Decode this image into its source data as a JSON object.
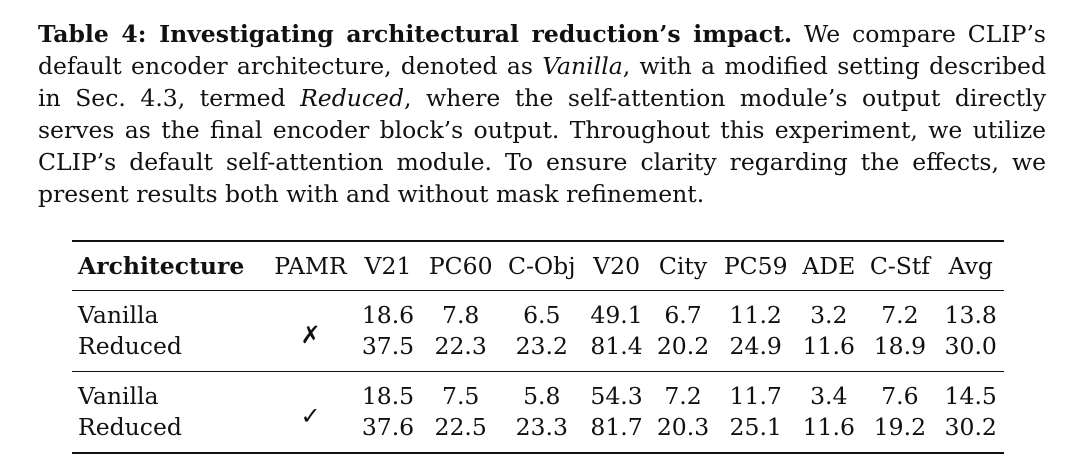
{
  "caption": {
    "label": "Table 4: Investigating architectural reduction’s impact.",
    "text_1": " We compare CLIP’s default encoder architecture, denoted as ",
    "vanilla": "Vanilla",
    "text_2": ", with a modified setting described in Sec. 4.3, termed ",
    "reduced": "Reduced",
    "text_3": ", where the self-attention module’s output directly serves as the final encoder block’s output. Throughout this experiment, we utilize CLIP’s default self-attention module. To ensure clarity regarding the effects, we present results both with and without mask refinement."
  },
  "table": {
    "headers": [
      "Architecture",
      "PAMR",
      "V21",
      "PC60",
      "C-Obj",
      "V20",
      "City",
      "PC59",
      "ADE",
      "C-Stf",
      "Avg"
    ],
    "groups": [
      {
        "pamr": "✗",
        "rows": [
          {
            "name": "Vanilla",
            "values": [
              "18.6",
              "7.8",
              "6.5",
              "49.1",
              "6.7",
              "11.2",
              "3.2",
              "7.2",
              "13.8"
            ]
          },
          {
            "name": "Reduced",
            "values": [
              "37.5",
              "22.3",
              "23.2",
              "81.4",
              "20.2",
              "24.9",
              "11.6",
              "18.9",
              "30.0"
            ]
          }
        ]
      },
      {
        "pamr": "✓",
        "rows": [
          {
            "name": "Vanilla",
            "values": [
              "18.5",
              "7.5",
              "5.8",
              "54.3",
              "7.2",
              "11.7",
              "3.4",
              "7.6",
              "14.5"
            ]
          },
          {
            "name": "Reduced",
            "values": [
              "37.6",
              "22.5",
              "23.3",
              "81.7",
              "20.3",
              "25.1",
              "11.6",
              "19.2",
              "30.2"
            ]
          }
        ]
      }
    ]
  }
}
